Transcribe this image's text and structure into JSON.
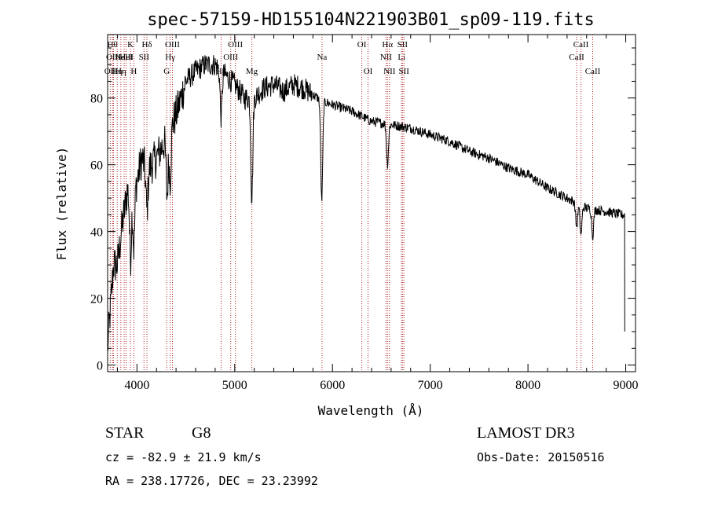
{
  "chart_data": {
    "type": "line",
    "title": "spec-57159-HD155104N221903B01_sp09-119.fits",
    "xlabel": "Wavelength (Å)",
    "ylabel": "Flux (relative)",
    "xlim": [
      3700,
      9100
    ],
    "ylim": [
      -2,
      99
    ],
    "x_ticks": [
      4000,
      5000,
      6000,
      7000,
      8000,
      9000
    ],
    "y_ticks": [
      0,
      20,
      40,
      60,
      80
    ],
    "spectrum_anchors": {
      "x": [
        3700,
        3760,
        3800,
        3850,
        3900,
        3950,
        4000,
        4050,
        4100,
        4200,
        4300,
        4400,
        4500,
        4600,
        4700,
        4800,
        4900,
        5000,
        5100,
        5200,
        5300,
        5400,
        5500,
        5600,
        5700,
        5800,
        5900,
        6000,
        6200,
        6400,
        6600,
        6800,
        7000,
        7200,
        7400,
        7600,
        7800,
        8000,
        8200,
        8400,
        8600,
        8800,
        8950
      ],
      "y": [
        5,
        30,
        30,
        42,
        52,
        55,
        55,
        62,
        58,
        62,
        68,
        75,
        85,
        88,
        90,
        90,
        87,
        84,
        80,
        80,
        83,
        84,
        82,
        84,
        83,
        81,
        79,
        78,
        76,
        73,
        72,
        71,
        69,
        67,
        64,
        62,
        59,
        57,
        53,
        50,
        47,
        46,
        45
      ]
    },
    "absorption_dips": [
      {
        "x": 3934,
        "depth": 22
      },
      {
        "x": 3968,
        "depth": 20
      },
      {
        "x": 4102,
        "depth": 12
      },
      {
        "x": 4308,
        "depth": 18
      },
      {
        "x": 4340,
        "depth": 15
      },
      {
        "x": 4861,
        "depth": 14
      },
      {
        "x": 5175,
        "depth": 30
      },
      {
        "x": 5890,
        "depth": 30
      },
      {
        "x": 6563,
        "depth": 12
      },
      {
        "x": 8498,
        "depth": 7
      },
      {
        "x": 8542,
        "depth": 9
      },
      {
        "x": 8662,
        "depth": 8
      }
    ],
    "line_markers": [
      {
        "x": 3727,
        "label": "OII",
        "row": 3
      },
      {
        "x": 3750,
        "label": "Hθ",
        "row": 1
      },
      {
        "x": 3760,
        "label": "OIII",
        "row": 2
      },
      {
        "x": 3798,
        "label": "Hη",
        "row": 3
      },
      {
        "x": 3835,
        "label": "Hη",
        "row": 3
      },
      {
        "x": 3869,
        "label": "NeIII",
        "row": 2
      },
      {
        "x": 3889,
        "label": "HeI",
        "row": 2
      },
      {
        "x": 3934,
        "label": "K",
        "row": 1
      },
      {
        "x": 3968,
        "label": "H",
        "row": 3
      },
      {
        "x": 4072,
        "label": "SII",
        "row": 2
      },
      {
        "x": 4102,
        "label": "Hδ",
        "row": 1
      },
      {
        "x": 4304,
        "label": "G",
        "row": 3
      },
      {
        "x": 4340,
        "label": "Hγ",
        "row": 2
      },
      {
        "x": 4363,
        "label": "OIII",
        "row": 1
      },
      {
        "x": 4861,
        "label": "Hβ",
        "row": 3
      },
      {
        "x": 4959,
        "label": "OIII",
        "row": 2
      },
      {
        "x": 5007,
        "label": "OIII",
        "row": 1
      },
      {
        "x": 5175,
        "label": "Mg",
        "row": 3
      },
      {
        "x": 5893,
        "label": "Na",
        "row": 2
      },
      {
        "x": 6300,
        "label": "OI",
        "row": 1
      },
      {
        "x": 6364,
        "label": "OI",
        "row": 3
      },
      {
        "x": 6548,
        "label": "NII",
        "row": 2
      },
      {
        "x": 6563,
        "label": "Hα",
        "row": 1
      },
      {
        "x": 6583,
        "label": "NII",
        "row": 3
      },
      {
        "x": 6707,
        "label": "Li",
        "row": 2
      },
      {
        "x": 6716,
        "label": "SII",
        "row": 1
      },
      {
        "x": 6731,
        "label": "SII",
        "row": 3
      },
      {
        "x": 8498,
        "label": "CaII",
        "row": 2
      },
      {
        "x": 8542,
        "label": "CaII",
        "row": 1
      },
      {
        "x": 8662,
        "label": "CaII",
        "row": 3
      }
    ]
  },
  "info": {
    "class": "STAR",
    "subclass": "G8",
    "survey": "LAMOST DR3",
    "cz": "cz = -82.9 ± 21.9 km/s",
    "obs_date": "Obs-Date: 20150516",
    "radec": "RA = 238.17726, DEC =  23.23992"
  },
  "colors": {
    "spectrum": "#000000",
    "marker": "#b22222",
    "axes": "#000000"
  }
}
